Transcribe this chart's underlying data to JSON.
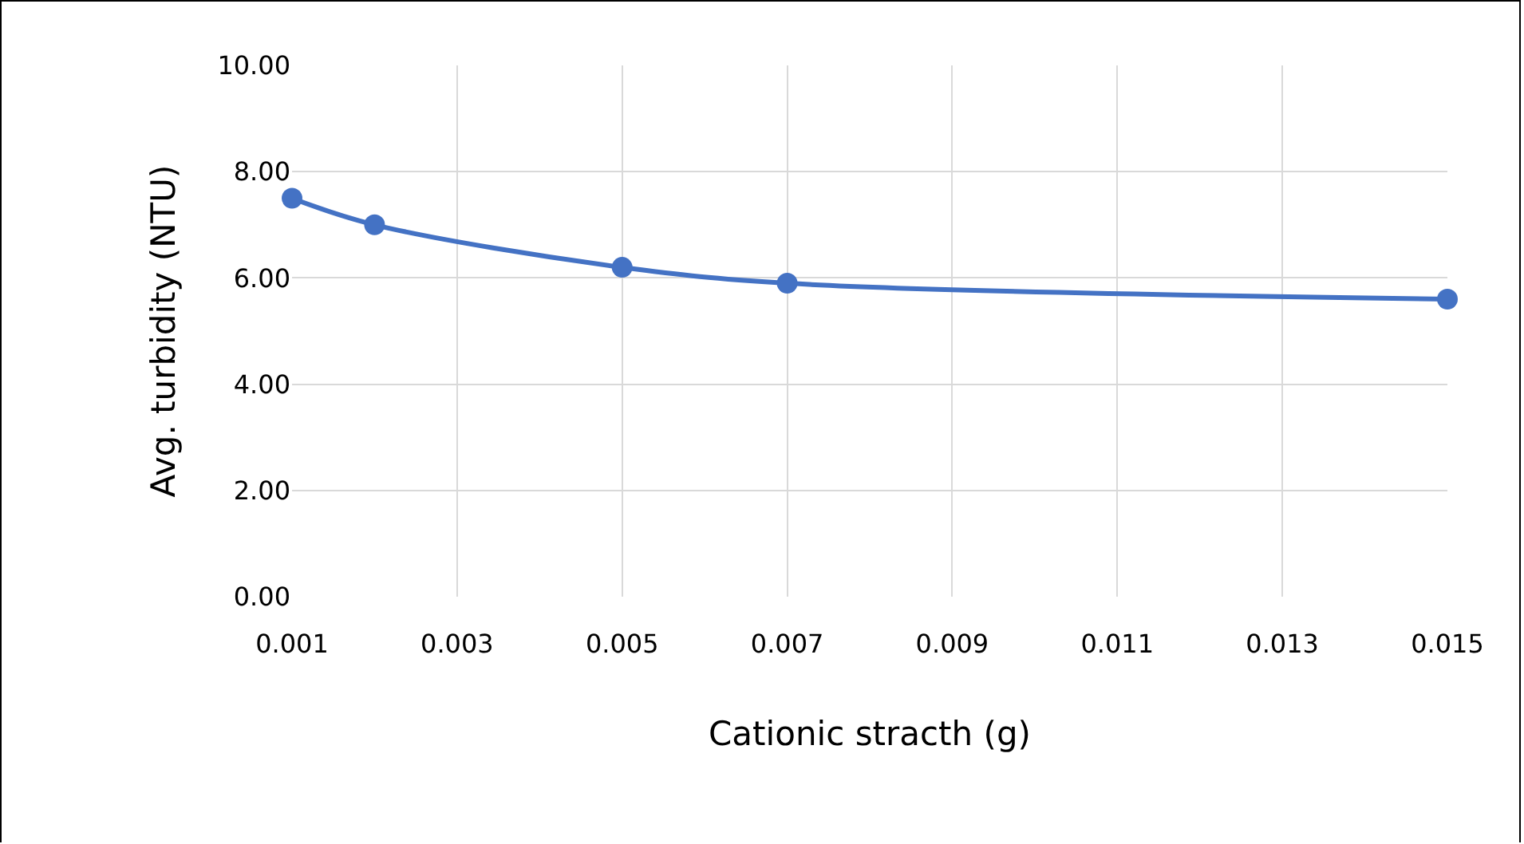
{
  "chart_data": {
    "type": "line",
    "xlabel": "Cationic stracth (g)",
    "ylabel": "Avg. turbidity (NTU)",
    "x": [
      0.001,
      0.002,
      0.005,
      0.007,
      0.015
    ],
    "series": [
      {
        "color": "#4472c4",
        "values": [
          7.5,
          7.0,
          6.2,
          5.9,
          5.6
        ]
      }
    ],
    "xlim": [
      0.001,
      0.015
    ],
    "xticks": [
      0.001,
      0.003,
      0.005,
      0.007,
      0.009,
      0.011,
      0.013,
      0.015
    ],
    "ylim": [
      0,
      10
    ],
    "yticks": [
      {
        "value": 0,
        "label": "0.00"
      },
      {
        "value": 2,
        "label": "2.00"
      },
      {
        "value": 4,
        "label": "4.00"
      },
      {
        "value": 6,
        "label": "6.00"
      },
      {
        "value": 8,
        "label": "8.00"
      },
      {
        "value": 10,
        "label": "10.00"
      }
    ],
    "grid": true,
    "marker": "circle",
    "line_style": "solid"
  }
}
